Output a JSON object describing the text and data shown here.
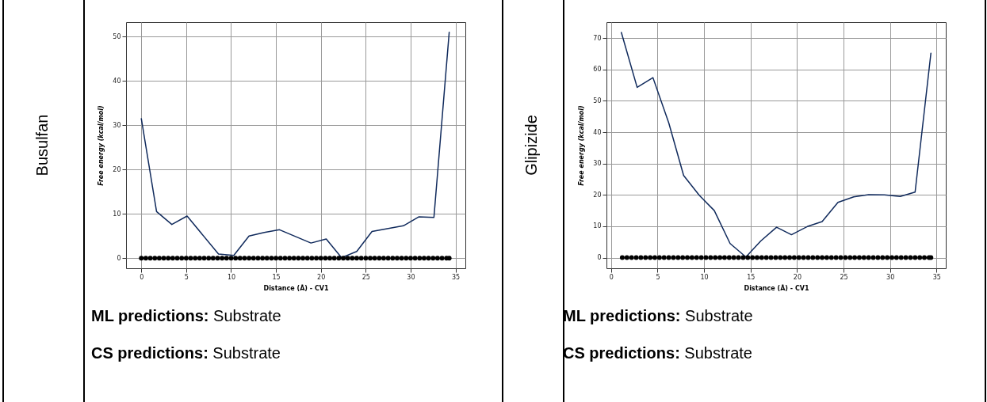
{
  "chart_data": [
    {
      "type": "line",
      "title": "Busulfan",
      "xlabel": "Distance (Å) - CV1",
      "ylabel": "Free energy (kcal/mol)",
      "xlim": [
        -1.7,
        36.1
      ],
      "ylim": [
        -2.3,
        53.3
      ],
      "xticks": [
        0,
        5,
        10,
        15,
        20,
        25,
        30,
        35
      ],
      "yticks": [
        0,
        10,
        20,
        30,
        40,
        50
      ],
      "grid": true,
      "annotations": [
        "ML predictions: Substrate",
        "CS predictions: Substrate"
      ],
      "series": [
        {
          "type": "line",
          "color": "#102a5c",
          "marker": "none",
          "x": [
            0,
            1.7,
            3.4,
            5.1,
            8.6,
            10.3,
            12.0,
            13.7,
            15.4,
            18.9,
            20.6,
            22.3,
            24.0,
            25.7,
            29.2,
            30.9,
            32.6,
            34.3
          ],
          "values": [
            31.5,
            10.5,
            7.6,
            9.5,
            0.9,
            0.6,
            5.0,
            5.8,
            6.4,
            3.4,
            4.3,
            0.1,
            1.5,
            6.0,
            7.3,
            9.3,
            9.2,
            51
          ]
        },
        {
          "type": "scatter",
          "color": "#000000",
          "marker": "circle",
          "x": [
            0,
            0.5,
            1,
            1.5,
            2,
            2.5,
            3,
            3.5,
            4,
            4.5,
            5,
            5.5,
            6,
            6.5,
            7,
            7.5,
            8,
            8.5,
            9,
            9.5,
            10,
            10.5,
            11,
            11.5,
            12,
            12.5,
            13,
            13.5,
            14,
            14.5,
            15,
            15.5,
            16,
            16.5,
            17,
            17.5,
            18,
            18.5,
            19,
            19.5,
            20,
            20.5,
            21,
            21.5,
            22,
            22.5,
            23,
            23.5,
            24,
            24.5,
            25,
            25.5,
            26,
            26.5,
            27,
            27.5,
            28,
            28.5,
            29,
            29.5,
            30,
            30.5,
            31,
            31.5,
            32,
            32.5,
            33,
            33.5,
            34,
            34.3
          ],
          "values": [
            0,
            0,
            0,
            0,
            0,
            0,
            0,
            0,
            0,
            0,
            0,
            0,
            0,
            0,
            0,
            0,
            0,
            0,
            0,
            0,
            0,
            0,
            0,
            0,
            0,
            0,
            0,
            0,
            0,
            0,
            0,
            0,
            0,
            0,
            0,
            0,
            0,
            0,
            0,
            0,
            0,
            0,
            0,
            0,
            0,
            0,
            0,
            0,
            0,
            0,
            0,
            0,
            0,
            0,
            0,
            0,
            0,
            0,
            0,
            0,
            0,
            0,
            0,
            0,
            0,
            0,
            0,
            0,
            0,
            0
          ]
        }
      ]
    },
    {
      "type": "line",
      "title": "Glipizide",
      "xlabel": "Distance (Å) - CV1",
      "ylabel": "Free energy (kcal/mol)",
      "xlim": [
        -0.5,
        36.0
      ],
      "ylim": [
        -3.4,
        75.1
      ],
      "xticks": [
        0,
        5,
        10,
        15,
        20,
        25,
        30,
        35
      ],
      "yticks": [
        0,
        10,
        20,
        30,
        40,
        50,
        60,
        70
      ],
      "grid": true,
      "annotations": [
        "ML predictions: Substrate",
        "CS predictions: Substrate"
      ],
      "series": [
        {
          "type": "line",
          "color": "#102a5c",
          "marker": "none",
          "x": [
            1.1,
            2.8,
            4.5,
            6.2,
            7.8,
            9.5,
            11.1,
            12.8,
            14.5,
            16.1,
            17.8,
            19.4,
            21.1,
            22.7,
            24.4,
            26.1,
            27.7,
            29.4,
            31.1,
            32.7,
            34.4
          ],
          "values": [
            71.8,
            54.3,
            57.4,
            43,
            26.2,
            19.8,
            15,
            4.5,
            0.2,
            5.3,
            9.7,
            7.3,
            9.9,
            11.5,
            17.6,
            19.4,
            20.1,
            20,
            19.5,
            20.9,
            65.2
          ]
        },
        {
          "type": "scatter",
          "color": "#000000",
          "marker": "circle",
          "x": [
            1.2,
            1.7,
            2.2,
            2.7,
            3.2,
            3.7,
            4.2,
            4.7,
            5.2,
            5.7,
            6.2,
            6.7,
            7.2,
            7.7,
            8.2,
            8.7,
            9.2,
            9.7,
            10.2,
            10.7,
            11.2,
            11.7,
            12.2,
            12.7,
            13.2,
            13.7,
            14.2,
            14.7,
            15.2,
            15.7,
            16.2,
            16.7,
            17.2,
            17.7,
            18.2,
            18.7,
            19.2,
            19.7,
            20.2,
            20.7,
            21.2,
            21.7,
            22.2,
            22.7,
            23.2,
            23.7,
            24.2,
            24.7,
            25.2,
            25.7,
            26.2,
            26.7,
            27.2,
            27.7,
            28.2,
            28.7,
            29.2,
            29.7,
            30.2,
            30.7,
            31.2,
            31.7,
            32.2,
            32.7,
            33.2,
            33.7,
            34.2,
            34.4
          ],
          "values": [
            0,
            0,
            0,
            0,
            0,
            0,
            0,
            0,
            0,
            0,
            0,
            0,
            0,
            0,
            0,
            0,
            0,
            0,
            0,
            0,
            0,
            0,
            0,
            0,
            0,
            0,
            0,
            0,
            0,
            0,
            0,
            0,
            0,
            0,
            0,
            0,
            0,
            0,
            0,
            0,
            0,
            0,
            0,
            0,
            0,
            0,
            0,
            0,
            0,
            0,
            0,
            0,
            0,
            0,
            0,
            0,
            0,
            0,
            0,
            0,
            0,
            0,
            0,
            0,
            0,
            0,
            0,
            0
          ]
        }
      ]
    }
  ]
}
